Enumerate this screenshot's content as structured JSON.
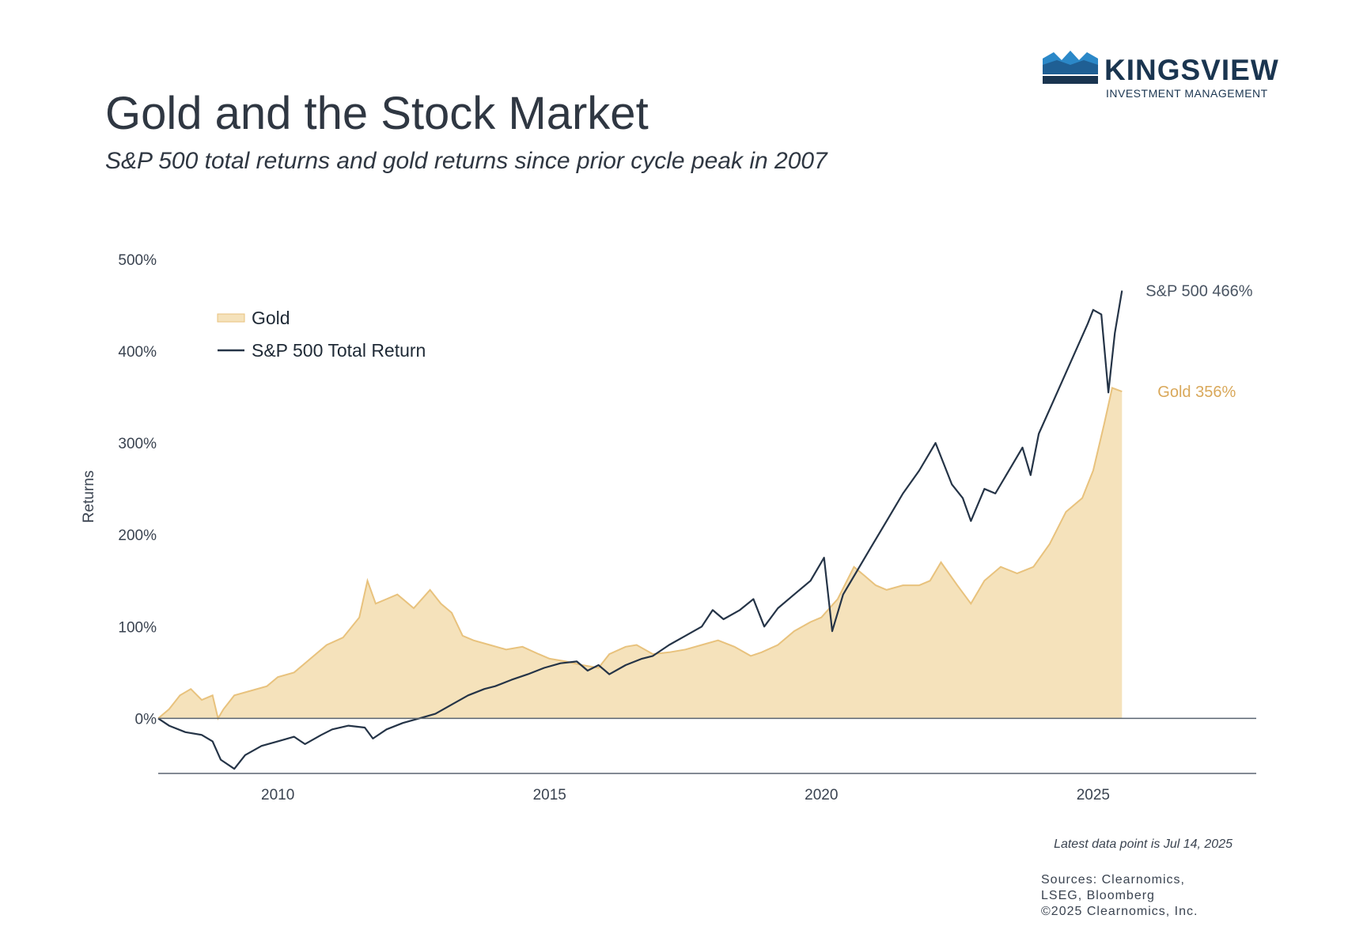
{
  "header": {
    "title": "Gold and the Stock Market",
    "subtitle": "S&P 500 total returns and gold returns since prior cycle peak in 2007"
  },
  "logo": {
    "name": "KINGSVIEW",
    "tagline": "INVESTMENT MANAGEMENT"
  },
  "footer": {
    "latest": "Latest data point is Jul 14, 2025",
    "sources": [
      "Sources: Clearnomics,",
      "LSEG, Bloomberg",
      "©2025 Clearnomics, Inc."
    ]
  },
  "colors": {
    "gold_fill": "#f5e2bb",
    "gold_line": "#e8c27d",
    "gold_label": "#d9a85a",
    "sp_line": "#253447",
    "axis": "#5a6470"
  },
  "chart_data": {
    "type": "area",
    "ylabel": "Returns",
    "ylim": [
      -60,
      500
    ],
    "yticks": [
      0,
      100,
      200,
      300,
      400,
      500
    ],
    "ytick_labels": [
      "0%",
      "100%",
      "200%",
      "300%",
      "400%",
      "500%"
    ],
    "xlim": [
      2007.8,
      2028.0
    ],
    "xticks": [
      2010,
      2015,
      2020,
      2025
    ],
    "xtick_labels": [
      "2010",
      "2015",
      "2020",
      "2025"
    ],
    "legend_position": "top-left",
    "series": [
      {
        "name": "Gold",
        "kind": "area",
        "end_label": "Gold 356%",
        "points": [
          [
            2007.8,
            0
          ],
          [
            2008.0,
            10
          ],
          [
            2008.2,
            25
          ],
          [
            2008.4,
            32
          ],
          [
            2008.6,
            20
          ],
          [
            2008.8,
            25
          ],
          [
            2008.9,
            0
          ],
          [
            2009.0,
            10
          ],
          [
            2009.2,
            25
          ],
          [
            2009.5,
            30
          ],
          [
            2009.8,
            35
          ],
          [
            2010.0,
            45
          ],
          [
            2010.3,
            50
          ],
          [
            2010.6,
            65
          ],
          [
            2010.9,
            80
          ],
          [
            2011.2,
            88
          ],
          [
            2011.5,
            110
          ],
          [
            2011.65,
            150
          ],
          [
            2011.8,
            125
          ],
          [
            2012.0,
            130
          ],
          [
            2012.2,
            135
          ],
          [
            2012.5,
            120
          ],
          [
            2012.8,
            140
          ],
          [
            2013.0,
            125
          ],
          [
            2013.2,
            115
          ],
          [
            2013.4,
            90
          ],
          [
            2013.6,
            85
          ],
          [
            2013.9,
            80
          ],
          [
            2014.2,
            75
          ],
          [
            2014.5,
            78
          ],
          [
            2014.8,
            70
          ],
          [
            2015.0,
            65
          ],
          [
            2015.3,
            62
          ],
          [
            2015.6,
            58
          ],
          [
            2015.9,
            55
          ],
          [
            2016.1,
            70
          ],
          [
            2016.4,
            78
          ],
          [
            2016.6,
            80
          ],
          [
            2016.9,
            70
          ],
          [
            2017.2,
            72
          ],
          [
            2017.5,
            75
          ],
          [
            2017.8,
            80
          ],
          [
            2018.1,
            85
          ],
          [
            2018.4,
            78
          ],
          [
            2018.7,
            68
          ],
          [
            2018.9,
            72
          ],
          [
            2019.2,
            80
          ],
          [
            2019.5,
            95
          ],
          [
            2019.8,
            105
          ],
          [
            2020.0,
            110
          ],
          [
            2020.3,
            130
          ],
          [
            2020.6,
            165
          ],
          [
            2020.8,
            155
          ],
          [
            2021.0,
            145
          ],
          [
            2021.2,
            140
          ],
          [
            2021.5,
            145
          ],
          [
            2021.8,
            145
          ],
          [
            2022.0,
            150
          ],
          [
            2022.2,
            170
          ],
          [
            2022.5,
            145
          ],
          [
            2022.75,
            125
          ],
          [
            2023.0,
            150
          ],
          [
            2023.3,
            165
          ],
          [
            2023.6,
            158
          ],
          [
            2023.9,
            165
          ],
          [
            2024.2,
            190
          ],
          [
            2024.5,
            225
          ],
          [
            2024.8,
            240
          ],
          [
            2025.0,
            270
          ],
          [
            2025.2,
            320
          ],
          [
            2025.35,
            360
          ],
          [
            2025.53,
            356
          ]
        ]
      },
      {
        "name": "S&P 500 Total Return",
        "kind": "line",
        "end_label": "S&P 500 466%",
        "points": [
          [
            2007.8,
            0
          ],
          [
            2008.0,
            -8
          ],
          [
            2008.3,
            -15
          ],
          [
            2008.6,
            -18
          ],
          [
            2008.8,
            -25
          ],
          [
            2008.95,
            -45
          ],
          [
            2009.2,
            -55
          ],
          [
            2009.4,
            -40
          ],
          [
            2009.7,
            -30
          ],
          [
            2010.0,
            -25
          ],
          [
            2010.3,
            -20
          ],
          [
            2010.5,
            -28
          ],
          [
            2010.8,
            -18
          ],
          [
            2011.0,
            -12
          ],
          [
            2011.3,
            -8
          ],
          [
            2011.6,
            -10
          ],
          [
            2011.75,
            -22
          ],
          [
            2012.0,
            -12
          ],
          [
            2012.3,
            -5
          ],
          [
            2012.6,
            0
          ],
          [
            2012.9,
            5
          ],
          [
            2013.2,
            15
          ],
          [
            2013.5,
            25
          ],
          [
            2013.8,
            32
          ],
          [
            2014.0,
            35
          ],
          [
            2014.3,
            42
          ],
          [
            2014.6,
            48
          ],
          [
            2014.9,
            55
          ],
          [
            2015.2,
            60
          ],
          [
            2015.5,
            62
          ],
          [
            2015.7,
            52
          ],
          [
            2015.9,
            58
          ],
          [
            2016.1,
            48
          ],
          [
            2016.4,
            58
          ],
          [
            2016.7,
            65
          ],
          [
            2016.9,
            68
          ],
          [
            2017.2,
            80
          ],
          [
            2017.5,
            90
          ],
          [
            2017.8,
            100
          ],
          [
            2018.0,
            118
          ],
          [
            2018.2,
            108
          ],
          [
            2018.5,
            118
          ],
          [
            2018.75,
            130
          ],
          [
            2018.95,
            100
          ],
          [
            2019.2,
            120
          ],
          [
            2019.5,
            135
          ],
          [
            2019.8,
            150
          ],
          [
            2020.05,
            175
          ],
          [
            2020.2,
            95
          ],
          [
            2020.4,
            135
          ],
          [
            2020.7,
            165
          ],
          [
            2020.9,
            185
          ],
          [
            2021.2,
            215
          ],
          [
            2021.5,
            245
          ],
          [
            2021.8,
            270
          ],
          [
            2022.0,
            290
          ],
          [
            2022.1,
            300
          ],
          [
            2022.4,
            255
          ],
          [
            2022.6,
            240
          ],
          [
            2022.75,
            215
          ],
          [
            2023.0,
            250
          ],
          [
            2023.2,
            245
          ],
          [
            2023.5,
            275
          ],
          [
            2023.7,
            295
          ],
          [
            2023.85,
            265
          ],
          [
            2024.0,
            310
          ],
          [
            2024.3,
            350
          ],
          [
            2024.6,
            390
          ],
          [
            2024.9,
            430
          ],
          [
            2025.0,
            445
          ],
          [
            2025.15,
            440
          ],
          [
            2025.28,
            355
          ],
          [
            2025.4,
            420
          ],
          [
            2025.53,
            466
          ]
        ]
      }
    ]
  }
}
